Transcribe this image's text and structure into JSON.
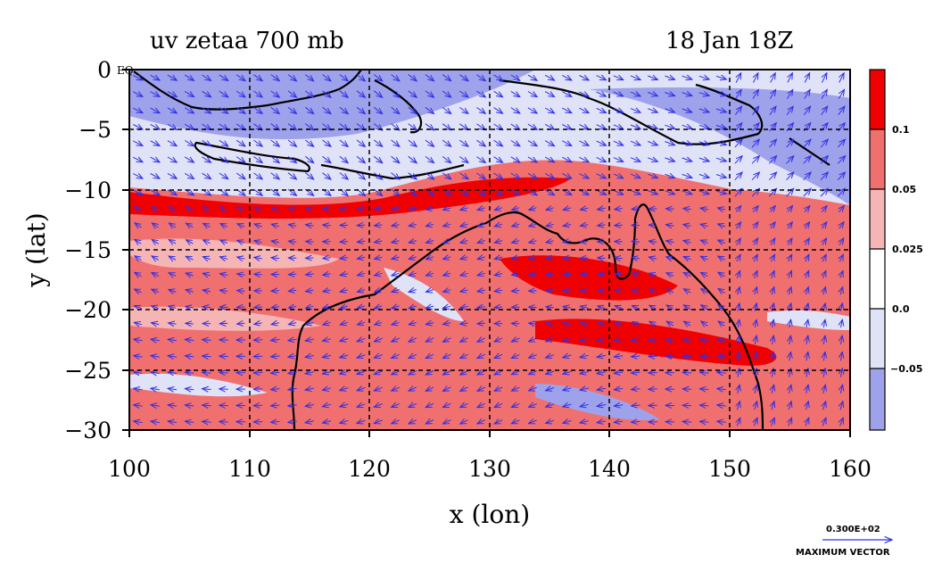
{
  "title_left": "uv zetaa 700 mb",
  "title_right": "18 Jan 18Z",
  "xlabel": "x (lon)",
  "ylabel": "y (lat)",
  "eq_label": "EQ",
  "xticks": [
    "100",
    "110",
    "120",
    "130",
    "140",
    "150",
    "160"
  ],
  "yticks": [
    "0",
    "−5",
    "−10",
    "−15",
    "−20",
    "−25",
    "−30"
  ],
  "colorbar": {
    "labels": [
      "0.1",
      "0.05",
      "0.025",
      "0.0",
      "−0.05"
    ],
    "colors": [
      "#f00000",
      "#f07070",
      "#f6b5b5",
      "#ffffff",
      "#e0e2f8",
      "#9ea2ea"
    ]
  },
  "vector_key": {
    "value": "0.300E+02",
    "label": "MAXIMUM VECTOR",
    "color": "#3030e6"
  },
  "chart_data": {
    "type": "heatmap",
    "title": "uv zetaa 700 mb",
    "subtitle": "18 Jan 18Z",
    "xlabel": "x (lon)",
    "ylabel": "y (lat)",
    "xlim": [
      100,
      160
    ],
    "ylim": [
      -30,
      0
    ],
    "grid": true,
    "contour_levels": [
      -0.05,
      0.0,
      0.025,
      0.05,
      0.1
    ],
    "overlay": "wind vectors (u, v)"
  }
}
